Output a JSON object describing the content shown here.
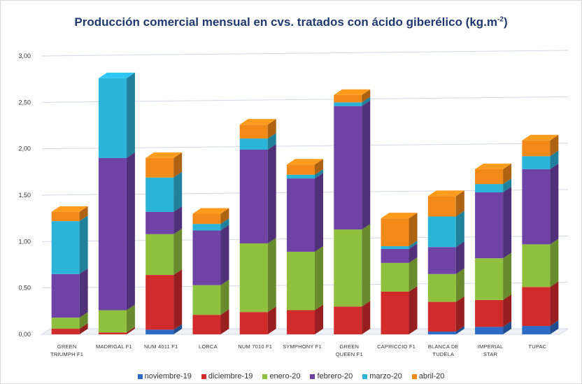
{
  "chart_data": {
    "type": "bar",
    "stacked": true,
    "three_d": true,
    "title": "Producción comercial mensual en cvs. tratados con ácido giberélico (kg.m",
    "title_sup": "-2",
    "title_close": ")",
    "ylim": [
      0,
      3.0
    ],
    "yticks": [
      "0,00",
      "0,50",
      "1,00",
      "1,50",
      "2,00",
      "2,50",
      "3,00"
    ],
    "grid": true,
    "legend_position": "bottom",
    "categories": [
      [
        "GREEN",
        "TRIUMPH F1"
      ],
      [
        "MADRIGAL F1"
      ],
      [
        "NUM 4011 F1"
      ],
      [
        "LORCA"
      ],
      [
        "NUM 7010 F1"
      ],
      [
        "SYMPHONY F1"
      ],
      [
        "GREEN",
        "QUEEN F1"
      ],
      [
        "CAPRICCIO F1"
      ],
      [
        "BLANCA DE",
        "TUDELA"
      ],
      [
        "IMPERIAL",
        "STAR"
      ],
      [
        "TUPAC"
      ]
    ],
    "series": [
      {
        "name": "noviembre-19",
        "color": "#2e6bc6",
        "values": [
          0.0,
          0.0,
          0.05,
          0.0,
          0.0,
          0.0,
          0.0,
          0.0,
          0.03,
          0.08,
          0.09
        ]
      },
      {
        "name": "diciembre-19",
        "color": "#d22b2b",
        "values": [
          0.06,
          0.02,
          0.59,
          0.21,
          0.24,
          0.26,
          0.3,
          0.46,
          0.32,
          0.29,
          0.42
        ]
      },
      {
        "name": "enero-20",
        "color": "#8fc13e",
        "values": [
          0.12,
          0.24,
          0.44,
          0.32,
          0.74,
          0.63,
          0.83,
          0.31,
          0.3,
          0.45,
          0.46
        ]
      },
      {
        "name": "febrero-20",
        "color": "#6f42a6",
        "values": [
          0.47,
          1.64,
          0.24,
          0.59,
          1.01,
          0.79,
          1.33,
          0.15,
          0.29,
          0.71,
          0.81
        ]
      },
      {
        "name": "marzo-20",
        "color": "#2bb3d8",
        "values": [
          0.57,
          0.86,
          0.37,
          0.07,
          0.12,
          0.04,
          0.04,
          0.03,
          0.33,
          0.09,
          0.14
        ]
      },
      {
        "name": "abril-20",
        "color": "#f28a1a",
        "values": [
          0.1,
          0.0,
          0.21,
          0.11,
          0.15,
          0.11,
          0.08,
          0.3,
          0.22,
          0.16,
          0.17
        ]
      }
    ]
  }
}
